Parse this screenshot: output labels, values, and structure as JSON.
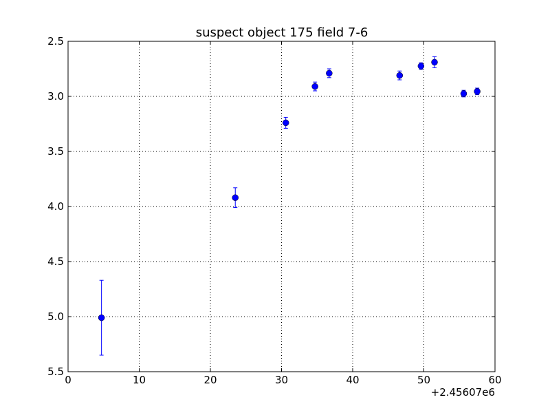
{
  "chart_data": {
    "type": "errorbar",
    "title": "suspect object 175 field 7-6",
    "x_offset_label": "+2.45607e6",
    "x": [
      4.7,
      23.5,
      30.6,
      34.7,
      36.7,
      46.6,
      49.6,
      51.5,
      55.6,
      57.5
    ],
    "series": [
      {
        "color": "#0000ff",
        "values": [
          5.01,
          3.92,
          3.24,
          2.91,
          2.79,
          2.81,
          2.725,
          2.69,
          2.975,
          2.955
        ],
        "errors": [
          0.34,
          0.09,
          0.05,
          0.04,
          0.04,
          0.04,
          0.03,
          0.05,
          0.03,
          0.03
        ]
      }
    ],
    "xlim": [
      0,
      60
    ],
    "xticks": [
      0,
      10,
      20,
      30,
      40,
      50,
      60
    ],
    "ylim": [
      2.5,
      5.5
    ],
    "y_inverted": true,
    "yticks": [
      2.5,
      {
        "value": 3,
        "label": "3.0"
      },
      3.5,
      {
        "value": 4,
        "label": "4.0"
      },
      4.5,
      {
        "value": 5,
        "label": "5.0"
      },
      5.5
    ],
    "grid": true
  }
}
